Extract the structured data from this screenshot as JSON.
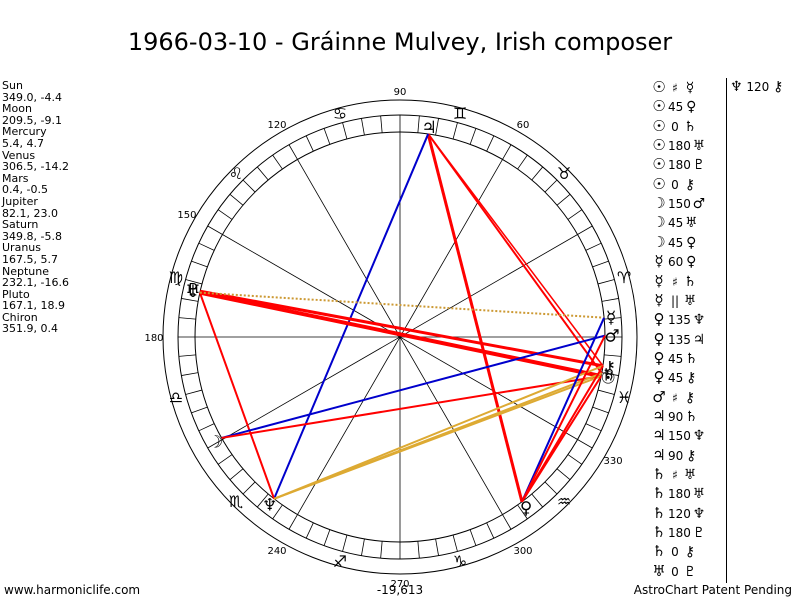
{
  "title": "1966-03-10 - Gráinne Mulvey, Irish composer",
  "planets": [
    {
      "name": "Sun",
      "coords": "349.0, -4.4"
    },
    {
      "name": "Moon",
      "coords": "209.5, -9.1"
    },
    {
      "name": "Mercury",
      "coords": "5.4, 4.7"
    },
    {
      "name": "Venus",
      "coords": "306.5, -14.2"
    },
    {
      "name": "Mars",
      "coords": "0.4, -0.5"
    },
    {
      "name": "Jupiter",
      "coords": "82.1, 23.0"
    },
    {
      "name": "Saturn",
      "coords": "349.8, -5.8"
    },
    {
      "name": "Uranus",
      "coords": "167.5, 5.7"
    },
    {
      "name": "Neptune",
      "coords": "232.1, -16.6"
    },
    {
      "name": "Pluto",
      "coords": "167.1, 18.9"
    },
    {
      "name": "Chiron",
      "coords": "351.9, 0.4"
    }
  ],
  "wheel": {
    "degree_labels": [
      "90",
      "60",
      "120",
      "150",
      "180",
      "240",
      "270",
      "300",
      "330"
    ],
    "zodiac_signs": [
      "♈",
      "♉",
      "♊",
      "♋",
      "♌",
      "♍",
      "♎",
      "♏",
      "♐",
      "♑",
      "♒",
      "♓"
    ],
    "planet_markers": [
      {
        "glyph": "♃",
        "lon": 82.1
      },
      {
        "glyph": "☽",
        "lon": 209.5
      },
      {
        "glyph": "♆",
        "lon": 232.1
      },
      {
        "glyph": "♀",
        "lon": 306.5
      },
      {
        "glyph": "♅",
        "lon": 167.5
      },
      {
        "glyph": "♇",
        "lon": 167.1
      },
      {
        "glyph": "☉",
        "lon": 349.0
      },
      {
        "glyph": "♄",
        "lon": 349.8
      },
      {
        "glyph": "⚷",
        "lon": 351.9
      },
      {
        "glyph": "♂",
        "lon": 0.4
      },
      {
        "glyph": "☿",
        "lon": 5.4
      }
    ],
    "aspect_lines": [
      {
        "from": 82.1,
        "to": 306.5,
        "color": "#ff0000",
        "width": 3
      },
      {
        "from": 82.1,
        "to": 349.8,
        "color": "#ff0000",
        "width": 2
      },
      {
        "from": 82.1,
        "to": 351.9,
        "color": "#ff0000",
        "width": 1.5
      },
      {
        "from": 82.1,
        "to": 232.1,
        "color": "#0000cc",
        "width": 2
      },
      {
        "from": 167.5,
        "to": 349.0,
        "color": "#ff0000",
        "width": 4
      },
      {
        "from": 167.1,
        "to": 351.9,
        "color": "#ff0000",
        "width": 3
      },
      {
        "from": 167.5,
        "to": 232.1,
        "color": "#ff0000",
        "width": 2
      },
      {
        "from": 167.5,
        "to": 5.4,
        "color": "#cc9933",
        "width": 2,
        "dotted": true
      },
      {
        "from": 209.5,
        "to": 0.4,
        "color": "#0000cc",
        "width": 2
      },
      {
        "from": 209.5,
        "to": 349.0,
        "color": "#ff0000",
        "width": 2
      },
      {
        "from": 232.1,
        "to": 349.0,
        "color": "#ddaa33",
        "width": 2
      },
      {
        "from": 232.1,
        "to": 349.8,
        "color": "#ddaa33",
        "width": 2
      },
      {
        "from": 232.1,
        "to": 351.9,
        "color": "#ddaa33",
        "width": 2
      },
      {
        "from": 306.5,
        "to": 5.4,
        "color": "#0000cc",
        "width": 2
      },
      {
        "from": 306.5,
        "to": 349.0,
        "color": "#ff0000",
        "width": 2
      },
      {
        "from": 306.5,
        "to": 351.9,
        "color": "#ff0000",
        "width": 2
      },
      {
        "from": 306.5,
        "to": 0.4,
        "color": "#ff0000",
        "width": 2
      }
    ]
  },
  "aspects": [
    {
      "g1": "☉",
      "deg": "♯",
      "g2": "☿"
    },
    {
      "g1": "☉",
      "deg": "45",
      "g2": "♀"
    },
    {
      "g1": "☉",
      "deg": "0",
      "g2": "♄"
    },
    {
      "g1": "☉",
      "deg": "180",
      "g2": "♅"
    },
    {
      "g1": "☉",
      "deg": "180",
      "g2": "♇"
    },
    {
      "g1": "☉",
      "deg": "0",
      "g2": "⚷"
    },
    {
      "g1": "☽",
      "deg": "150",
      "g2": "♂"
    },
    {
      "g1": "☽",
      "deg": "45",
      "g2": "♅"
    },
    {
      "g1": "☽",
      "deg": "45",
      "g2": "♀"
    },
    {
      "g1": "☿",
      "deg": "60",
      "g2": "♀"
    },
    {
      "g1": "☿",
      "deg": "♯",
      "g2": "♄"
    },
    {
      "g1": "☿",
      "deg": "||",
      "g2": "♅"
    },
    {
      "g1": "♀",
      "deg": "135",
      "g2": "♆"
    },
    {
      "g1": "♀",
      "deg": "135",
      "g2": "♃"
    },
    {
      "g1": "♀",
      "deg": "45",
      "g2": "♄"
    },
    {
      "g1": "♀",
      "deg": "45",
      "g2": "⚷"
    },
    {
      "g1": "♂",
      "deg": "♯",
      "g2": "⚷"
    },
    {
      "g1": "♃",
      "deg": "90",
      "g2": "♄"
    },
    {
      "g1": "♃",
      "deg": "150",
      "g2": "♆"
    },
    {
      "g1": "♃",
      "deg": "90",
      "g2": "⚷"
    },
    {
      "g1": "♄",
      "deg": "♯",
      "g2": "♅"
    },
    {
      "g1": "♄",
      "deg": "180",
      "g2": "♅"
    },
    {
      "g1": "♄",
      "deg": "120",
      "g2": "♆"
    },
    {
      "g1": "♄",
      "deg": "180",
      "g2": "♇"
    },
    {
      "g1": "♄",
      "deg": "0",
      "g2": "⚷"
    },
    {
      "g1": "♅",
      "deg": "0",
      "g2": "♇"
    }
  ],
  "extra_aspect": {
    "g1": "♆",
    "deg": "120",
    "g2": "⚷"
  },
  "footer": {
    "left": "www.harmoniclife.com",
    "center": "-19,613",
    "right": "AstroChart Patent Pending"
  }
}
